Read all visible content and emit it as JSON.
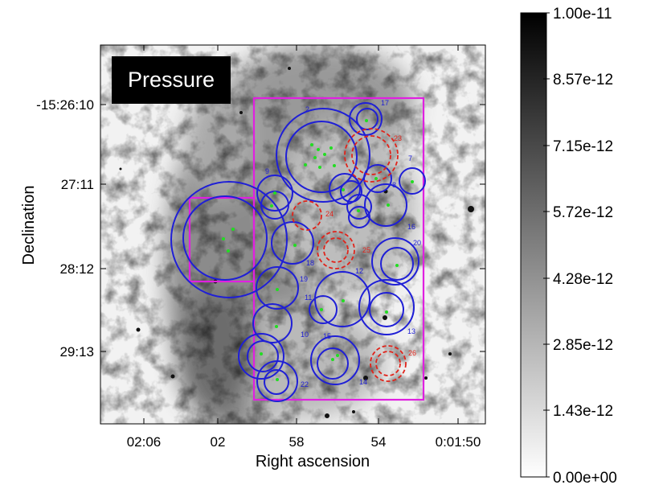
{
  "title_box": "Pressure",
  "x_axis": {
    "title": "Right ascension",
    "ticks": [
      "02:06",
      "02",
      "58",
      "54",
      "0:01:50"
    ]
  },
  "y_axis": {
    "title": "Declination",
    "ticks": [
      "-15:26:10",
      "27:11",
      "28:12",
      "29:13"
    ]
  },
  "colorbar": {
    "labels": [
      "1.00e-11",
      "8.57e-12",
      "7.15e-12",
      "5.72e-12",
      "4.28e-12",
      "2.85e-12",
      "1.43e-12",
      "0.00e+00"
    ],
    "min": 0,
    "max": 1e-11,
    "colormap": "grayscale (white=low, black=high)"
  },
  "colors": {
    "regions_blue": "#1f1fd6",
    "regions_red": "#e0241b",
    "rectangles": "#e020e0",
    "sources": "#22dd22"
  },
  "blue_regions": [
    {
      "id": "2"
    },
    {
      "id": "17"
    },
    {
      "id": "7"
    },
    {
      "id": "8"
    },
    {
      "id": "9"
    },
    {
      "id": "16"
    },
    {
      "id": "20"
    },
    {
      "id": "18"
    },
    {
      "id": "19"
    },
    {
      "id": "12"
    },
    {
      "id": "11"
    },
    {
      "id": "13"
    },
    {
      "id": "10"
    },
    {
      "id": "15"
    },
    {
      "id": "14"
    },
    {
      "id": "22"
    }
  ],
  "red_regions": [
    {
      "id": "23"
    },
    {
      "id": "24"
    },
    {
      "id": "25"
    },
    {
      "id": "26"
    }
  ]
}
